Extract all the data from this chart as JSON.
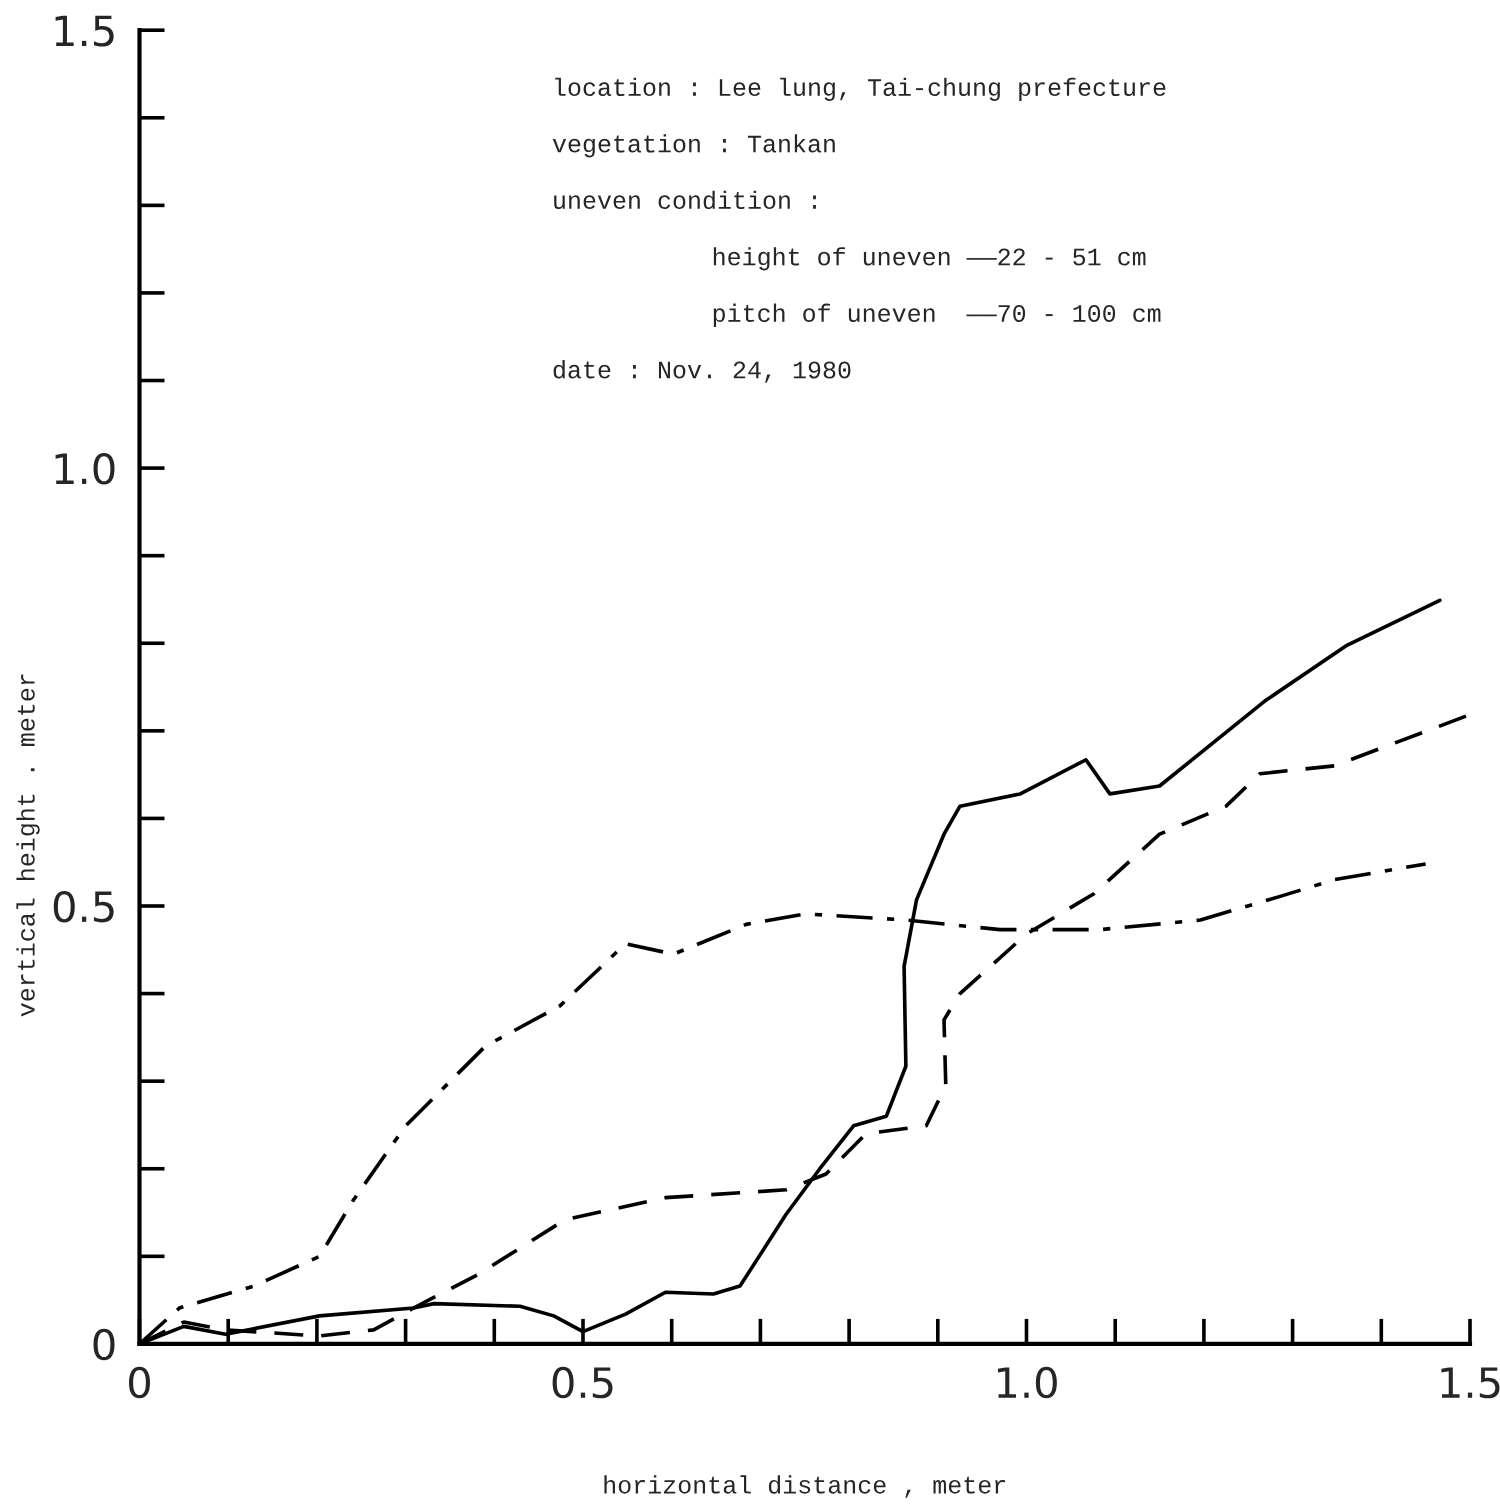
{
  "chart_data": {
    "type": "line",
    "xlabel": "horizontal distance , meter",
    "ylabel": "vertical height . meter",
    "annotations": [
      "location : Lee lung, Tai-chung prefecture",
      "vegetation : Tankan",
      "uneven condition :",
      "height of uneven ——22 - 51 cm",
      "pitch of uneven  ——70 - 100 cm",
      "date : Nov. 24, 1980"
    ],
    "xlim": [
      0,
      1.5
    ],
    "ylim": [
      0,
      1.5
    ],
    "xticks": [
      0,
      {
        "value": 0.1,
        "label": null
      },
      {
        "value": 0.2,
        "label": null
      },
      {
        "value": 0.3,
        "label": null
      },
      {
        "value": 0.4,
        "label": null
      },
      0.5,
      {
        "value": 0.6,
        "label": null
      },
      {
        "value": 0.7,
        "label": null
      },
      {
        "value": 0.8,
        "label": null
      },
      {
        "value": 0.9,
        "label": null
      },
      {
        "value": 1.0,
        "label": "1.0"
      },
      {
        "value": 1.1,
        "label": null
      },
      {
        "value": 1.2,
        "label": null
      },
      {
        "value": 1.3,
        "label": null
      },
      {
        "value": 1.4,
        "label": null
      },
      1.5
    ],
    "yticks": [
      0,
      {
        "value": 0.1,
        "label": null
      },
      {
        "value": 0.2,
        "label": null
      },
      {
        "value": 0.3,
        "label": null
      },
      {
        "value": 0.4,
        "label": null
      },
      0.5,
      {
        "value": 0.6,
        "label": null
      },
      {
        "value": 0.7,
        "label": null
      },
      {
        "value": 0.8,
        "label": null
      },
      {
        "value": 0.9,
        "label": null
      },
      {
        "value": 1.0,
        "label": "1.0"
      },
      {
        "value": 1.1,
        "label": null
      },
      {
        "value": 1.2,
        "label": null
      },
      {
        "value": 1.3,
        "label": null
      },
      {
        "value": 1.4,
        "label": null
      },
      1.5
    ],
    "grid": false,
    "legend": false,
    "marker": "none",
    "series": [
      {
        "color": "#000000",
        "line_style": "solid",
        "x": [
          0,
          0.05,
          0.097,
          0.203,
          0.309,
          0.332,
          0.429,
          0.467,
          0.5,
          0.548,
          0.593,
          0.647,
          0.677,
          0.729,
          0.767,
          0.805,
          0.842,
          0.864,
          0.862,
          0.876,
          0.907,
          0.925,
          0.993,
          1.067,
          1.094,
          1.15,
          1.27,
          1.36,
          1.466
        ],
        "values": [
          0,
          0.02,
          0.011,
          0.032,
          0.041,
          0.046,
          0.043,
          0.032,
          0.014,
          0.034,
          0.059,
          0.057,
          0.066,
          0.148,
          0.2,
          0.249,
          0.26,
          0.317,
          0.431,
          0.507,
          0.582,
          0.614,
          0.628,
          0.667,
          0.628,
          0.637,
          0.735,
          0.797,
          0.849
        ]
      },
      {
        "color": "#000000",
        "line_style": "dashed",
        "x": [
          0,
          0.05,
          0.097,
          0.203,
          0.264,
          0.309,
          0.383,
          0.48,
          0.593,
          0.729,
          0.774,
          0.819,
          0.887,
          0.909,
          0.907,
          0.925,
          1.0,
          1.076,
          1.15,
          1.225,
          1.263,
          1.347,
          1.496
        ],
        "values": [
          0,
          0.025,
          0.016,
          0.009,
          0.016,
          0.041,
          0.08,
          0.142,
          0.167,
          0.176,
          0.194,
          0.24,
          0.249,
          0.295,
          0.37,
          0.4,
          0.468,
          0.514,
          0.582,
          0.614,
          0.651,
          0.66,
          0.717
        ]
      },
      {
        "color": "#000000",
        "line_style": "dashdot",
        "x": [
          0,
          0.045,
          0.129,
          0.203,
          0.241,
          0.3,
          0.39,
          0.474,
          0.548,
          0.602,
          0.684,
          0.751,
          0.864,
          0.97,
          1.083,
          1.196,
          1.286,
          1.347,
          1.45
        ],
        "values": [
          0,
          0.041,
          0.066,
          0.1,
          0.164,
          0.249,
          0.34,
          0.386,
          0.457,
          0.445,
          0.479,
          0.491,
          0.484,
          0.473,
          0.473,
          0.484,
          0.511,
          0.53,
          0.548
        ]
      }
    ]
  }
}
